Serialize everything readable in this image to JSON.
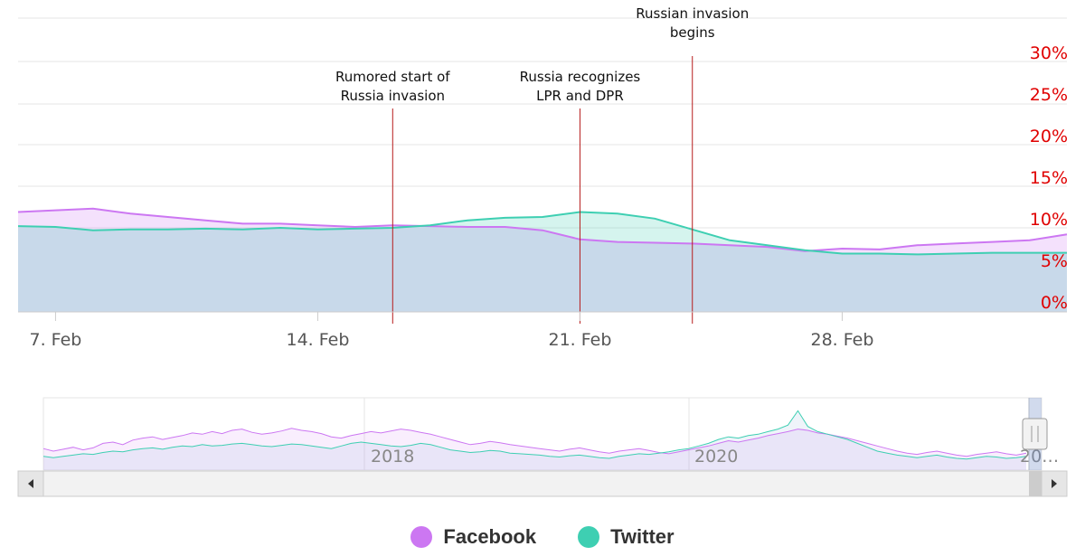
{
  "chart_data": {
    "type": "area",
    "title": "",
    "xlabel": "",
    "ylabel": "",
    "x_ticks": [
      "7. Feb",
      "14. Feb",
      "21. Feb",
      "28. Feb"
    ],
    "y_ticks": [
      "0%",
      "5%",
      "10%",
      "15%",
      "20%",
      "25%",
      "30%"
    ],
    "ylim": [
      0,
      30
    ],
    "grid": true,
    "legend_position": "bottom",
    "series": [
      {
        "name": "Facebook",
        "color": "#cc77f2",
        "points": [
          [
            "2022-02-06",
            10.6
          ],
          [
            "2022-02-07",
            10.8
          ],
          [
            "2022-02-08",
            11.0
          ],
          [
            "2022-02-09",
            10.4
          ],
          [
            "2022-02-10",
            10.0
          ],
          [
            "2022-02-11",
            9.6
          ],
          [
            "2022-02-12",
            9.2
          ],
          [
            "2022-02-13",
            9.2
          ],
          [
            "2022-02-14",
            9.0
          ],
          [
            "2022-02-15",
            8.8
          ],
          [
            "2022-02-16",
            9.0
          ],
          [
            "2022-02-17",
            8.9
          ],
          [
            "2022-02-18",
            8.8
          ],
          [
            "2022-02-19",
            8.8
          ],
          [
            "2022-02-20",
            8.4
          ],
          [
            "2022-02-21",
            7.3
          ],
          [
            "2022-02-22",
            7.0
          ],
          [
            "2022-02-23",
            6.9
          ],
          [
            "2022-02-24",
            6.8
          ],
          [
            "2022-02-25",
            6.6
          ],
          [
            "2022-02-26",
            6.4
          ],
          [
            "2022-02-27",
            5.9
          ],
          [
            "2022-02-28",
            6.2
          ],
          [
            "2022-03-01",
            6.1
          ],
          [
            "2022-03-02",
            6.6
          ],
          [
            "2022-03-03",
            6.8
          ],
          [
            "2022-03-04",
            7.0
          ],
          [
            "2022-03-05",
            7.2
          ],
          [
            "2022-03-06",
            7.9
          ]
        ]
      },
      {
        "name": "Twitter",
        "color": "#3ecfb2",
        "points": [
          [
            "2022-02-06",
            8.9
          ],
          [
            "2022-02-07",
            8.8
          ],
          [
            "2022-02-08",
            8.4
          ],
          [
            "2022-02-09",
            8.5
          ],
          [
            "2022-02-10",
            8.5
          ],
          [
            "2022-02-11",
            8.6
          ],
          [
            "2022-02-12",
            8.5
          ],
          [
            "2022-02-13",
            8.7
          ],
          [
            "2022-02-14",
            8.5
          ],
          [
            "2022-02-15",
            8.6
          ],
          [
            "2022-02-16",
            8.7
          ],
          [
            "2022-02-17",
            9.0
          ],
          [
            "2022-02-18",
            9.6
          ],
          [
            "2022-02-19",
            9.9
          ],
          [
            "2022-02-20",
            10.0
          ],
          [
            "2022-02-21",
            10.6
          ],
          [
            "2022-02-22",
            10.4
          ],
          [
            "2022-02-23",
            9.8
          ],
          [
            "2022-02-24",
            8.5
          ],
          [
            "2022-02-25",
            7.2
          ],
          [
            "2022-02-26",
            6.6
          ],
          [
            "2022-02-27",
            6.0
          ],
          [
            "2022-02-28",
            5.6
          ],
          [
            "2022-03-01",
            5.6
          ],
          [
            "2022-03-02",
            5.5
          ],
          [
            "2022-03-03",
            5.6
          ],
          [
            "2022-03-04",
            5.7
          ],
          [
            "2022-03-05",
            5.7
          ],
          [
            "2022-03-06",
            5.7
          ]
        ]
      }
    ],
    "annotations": [
      {
        "date": "2022-02-16",
        "label": [
          "Rumored start of",
          "Russia invasion"
        ]
      },
      {
        "date": "2022-02-21",
        "label": [
          "Russia recognizes",
          "LPR and DPR"
        ]
      },
      {
        "date": "2022-02-24",
        "label": [
          "Russian invasion",
          "begins"
        ]
      }
    ],
    "navigator": {
      "x_ticks": [
        "2018",
        "2020",
        "20…"
      ],
      "facebook_trace": [
        62,
        58,
        61,
        64,
        60,
        63,
        70,
        72,
        68,
        75,
        78,
        80,
        76,
        79,
        82,
        86,
        84,
        88,
        85,
        90,
        92,
        87,
        84,
        86,
        89,
        93,
        90,
        88,
        85,
        80,
        78,
        82,
        85,
        88,
        86,
        89,
        92,
        90,
        87,
        84,
        80,
        76,
        72,
        68,
        70,
        73,
        71,
        68,
        66,
        64,
        62,
        60,
        58,
        61,
        63,
        60,
        57,
        55,
        58,
        60,
        62,
        59,
        56,
        54,
        57,
        60,
        63,
        66,
        70,
        74,
        72,
        75,
        78,
        82,
        85,
        88,
        92,
        90,
        86,
        84,
        81,
        78,
        74,
        70,
        66,
        62,
        58,
        55,
        53,
        56,
        58,
        55,
        52,
        50,
        53,
        55,
        57,
        54,
        52,
        55
      ],
      "twitter_trace": [
        50,
        48,
        50,
        52,
        54,
        53,
        56,
        58,
        57,
        60,
        62,
        63,
        61,
        64,
        66,
        65,
        68,
        66,
        67,
        69,
        70,
        68,
        66,
        65,
        67,
        69,
        68,
        66,
        64,
        62,
        66,
        70,
        72,
        70,
        68,
        66,
        65,
        67,
        70,
        68,
        64,
        60,
        58,
        56,
        57,
        59,
        58,
        55,
        54,
        53,
        52,
        50,
        49,
        51,
        52,
        50,
        48,
        47,
        50,
        52,
        54,
        53,
        55,
        57,
        60,
        62,
        66,
        70,
        76,
        80,
        78,
        82,
        84,
        88,
        92,
        98,
        120,
        96,
        88,
        84,
        80,
        76,
        70,
        64,
        58,
        55,
        52,
        50,
        48,
        50,
        52,
        49,
        47,
        46,
        48,
        50,
        49,
        47,
        48,
        50
      ]
    },
    "legend": [
      {
        "name": "Facebook",
        "color": "#cc77f2"
      },
      {
        "name": "Twitter",
        "color": "#3ecfb2"
      }
    ]
  }
}
